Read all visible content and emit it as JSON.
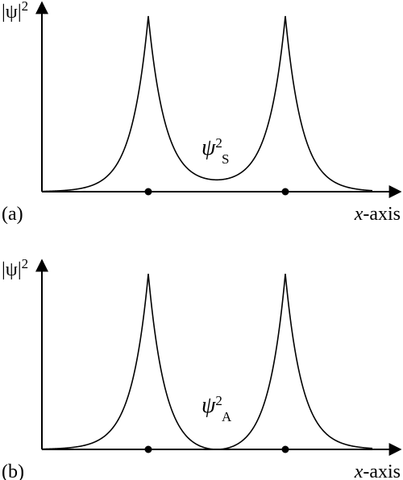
{
  "panels": [
    {
      "tag": "(a)",
      "y_label": {
        "base": "|ψ|",
        "sup": "2"
      },
      "x_label": {
        "var": "x",
        "rest": "-axis"
      },
      "curve_label": {
        "symbol": "ψ",
        "sup": "2",
        "sub": "S"
      }
    },
    {
      "tag": "(b)",
      "y_label": {
        "base": "|ψ|",
        "sup": "2"
      },
      "x_label": {
        "var": "x",
        "rest": "-axis"
      },
      "curve_label": {
        "symbol": "ψ",
        "sup": "2",
        "sub": "A"
      }
    }
  ]
}
